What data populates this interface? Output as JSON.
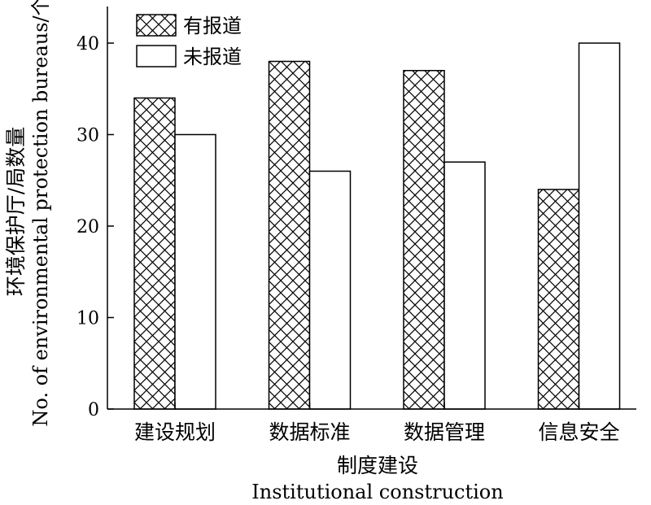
{
  "chart_data": {
    "type": "bar",
    "categories": [
      "建设规划",
      "数据标准",
      "数据管理",
      "信息安全"
    ],
    "series": [
      {
        "name": "有报道",
        "values": [
          34,
          38,
          37,
          24
        ],
        "pattern": "crosshatch"
      },
      {
        "name": "未报道",
        "values": [
          30,
          26,
          27,
          40
        ],
        "pattern": "none"
      }
    ],
    "xlabel": "制度建设",
    "xlabel_en": "Institutional construction",
    "ylabel": "环境保护厅/局数量",
    "ylabel_en": "No. of environmental protection bureaus/个",
    "ylim": [
      0,
      44
    ],
    "yticks": [
      0,
      10,
      20,
      30,
      40
    ],
    "grid": false,
    "legend": "top-left",
    "colors": {
      "bar_fill": "#ffffff",
      "stroke": "#000000"
    }
  }
}
